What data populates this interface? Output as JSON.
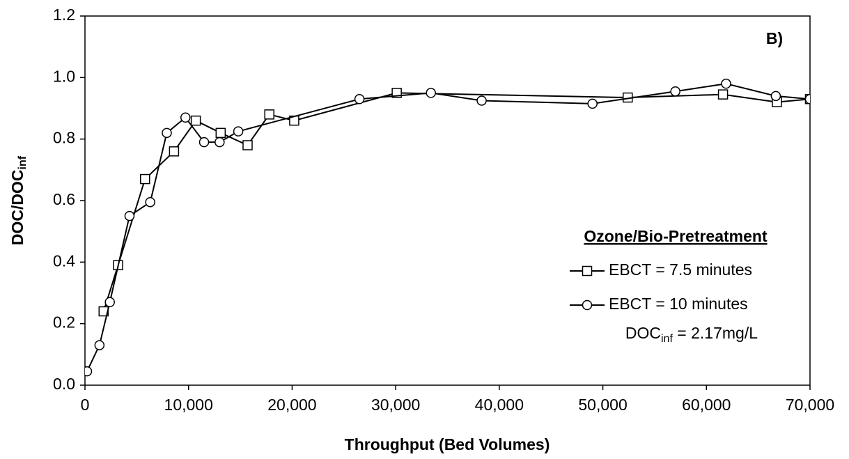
{
  "chart_data": {
    "type": "line",
    "panel_label": "B)",
    "x_label": "Throughput (Bed Volumes)",
    "y_label": {
      "text": "DOC/DOC",
      "subscript": "inf"
    },
    "legend_title": "Ozone/Bio-Pretreatment",
    "annotation": {
      "text": "DOC",
      "subscript": "inf",
      "suffix": " = 2.17mg/L"
    },
    "xlim": [
      0,
      70000
    ],
    "xticks": [
      0,
      {
        "value": 10000,
        "label": "10,000"
      },
      {
        "value": 20000,
        "label": "20,000"
      },
      {
        "value": 30000,
        "label": "30,000"
      },
      {
        "value": 40000,
        "label": "40,000"
      },
      {
        "value": 50000,
        "label": "50,000"
      },
      {
        "value": 60000,
        "label": "60,000"
      },
      {
        "value": 70000,
        "label": "70,000"
      }
    ],
    "ylim": [
      0,
      1.2
    ],
    "yticks": [
      {
        "value": 0,
        "label": "0.0"
      },
      {
        "value": 0.2,
        "label": "0.2"
      },
      {
        "value": 0.4,
        "label": "0.4"
      },
      {
        "value": 0.6,
        "label": "0.6"
      },
      {
        "value": 0.8,
        "label": "0.8"
      },
      {
        "value": 1,
        "label": "1.0"
      },
      {
        "value": 1.2,
        "label": "1.2"
      }
    ],
    "series": [
      {
        "name": "EBCT = 7.5 minutes",
        "marker": "square",
        "color": "#000000",
        "x": [
          1800,
          3200,
          5800,
          8600,
          10700,
          13100,
          15700,
          17800,
          20200,
          30100,
          52400,
          61600,
          66800,
          70000
        ],
        "values": [
          0.24,
          0.39,
          0.67,
          0.76,
          0.86,
          0.82,
          0.78,
          0.88,
          0.86,
          0.95,
          0.935,
          0.945,
          0.92,
          0.93
        ]
      },
      {
        "name": "EBCT = 10 minutes",
        "marker": "circle",
        "color": "#000000",
        "x": [
          200,
          1400,
          2400,
          4300,
          6300,
          7900,
          9700,
          11500,
          13000,
          14800,
          26500,
          33400,
          38300,
          49000,
          57000,
          61900,
          66700,
          70000
        ],
        "values": [
          0.045,
          0.13,
          0.27,
          0.55,
          0.595,
          0.82,
          0.87,
          0.79,
          0.79,
          0.825,
          0.93,
          0.95,
          0.925,
          0.915,
          0.955,
          0.98,
          0.94,
          0.93
        ]
      }
    ]
  }
}
